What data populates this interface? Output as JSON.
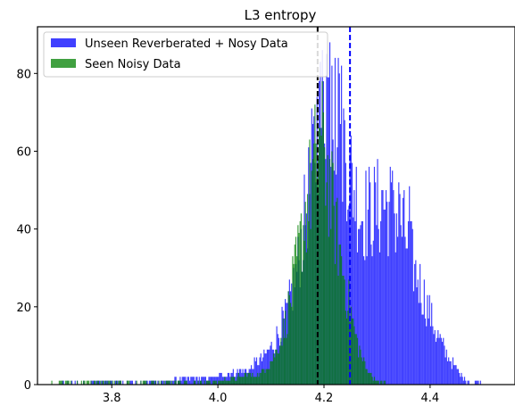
{
  "chart_data": {
    "type": "histogram",
    "title": "L3 entropy",
    "xlabel": "",
    "ylabel": "",
    "xlim": [
      3.66,
      4.56
    ],
    "ylim": [
      0,
      92
    ],
    "xticks": [
      3.8,
      4.0,
      4.2,
      4.4
    ],
    "xtick_labels": [
      "3.8",
      "4.0",
      "4.2",
      "4.4"
    ],
    "yticks": [
      0,
      20,
      40,
      60,
      80
    ],
    "ytick_labels": [
      "0",
      "20",
      "40",
      "60",
      "80"
    ],
    "grid": false,
    "legend_position": "upper-left",
    "bin_width": 0.002,
    "series": [
      {
        "name": "Unseen Reverberated + Nosy Data",
        "color": "#0000ff",
        "opacity": 0.75,
        "profile": [
          [
            3.7,
            0
          ],
          [
            3.9,
            1
          ],
          [
            4.0,
            2
          ],
          [
            4.06,
            4
          ],
          [
            4.1,
            9
          ],
          [
            4.13,
            18
          ],
          [
            4.15,
            30
          ],
          [
            4.17,
            48
          ],
          [
            4.19,
            68
          ],
          [
            4.21,
            76
          ],
          [
            4.23,
            68
          ],
          [
            4.25,
            54
          ],
          [
            4.27,
            44
          ],
          [
            4.29,
            44
          ],
          [
            4.31,
            46
          ],
          [
            4.33,
            45
          ],
          [
            4.35,
            40
          ],
          [
            4.37,
            30
          ],
          [
            4.39,
            22
          ],
          [
            4.41,
            14
          ],
          [
            4.43,
            8
          ],
          [
            4.45,
            4
          ],
          [
            4.47,
            1
          ],
          [
            4.5,
            0
          ]
        ],
        "peak_bins": [
          [
            4.21,
            88
          ],
          [
            4.205,
            85
          ],
          [
            4.22,
            84
          ],
          [
            4.215,
            82
          ],
          [
            4.228,
            80
          ],
          [
            4.19,
            78
          ],
          [
            4.34,
            52
          ],
          [
            4.33,
            50
          ],
          [
            4.36,
            51
          ],
          [
            4.31,
            50
          ]
        ]
      },
      {
        "name": "Seen Noisy Data",
        "color": "#008000",
        "opacity": 0.75,
        "profile": [
          [
            3.7,
            0
          ],
          [
            3.9,
            0.5
          ],
          [
            4.0,
            1
          ],
          [
            4.08,
            3
          ],
          [
            4.11,
            8
          ],
          [
            4.13,
            17
          ],
          [
            4.15,
            32
          ],
          [
            4.17,
            48
          ],
          [
            4.185,
            58
          ],
          [
            4.195,
            62
          ],
          [
            4.205,
            56
          ],
          [
            4.22,
            42
          ],
          [
            4.24,
            26
          ],
          [
            4.26,
            12
          ],
          [
            4.28,
            4
          ],
          [
            4.3,
            1
          ],
          [
            4.32,
            0
          ]
        ],
        "peak_bins": [
          [
            4.19,
            66
          ],
          [
            4.195,
            64
          ],
          [
            4.185,
            62
          ],
          [
            4.2,
            61
          ]
        ]
      }
    ],
    "vlines": [
      {
        "x": 4.188,
        "color": "#000000",
        "style": "dashed"
      },
      {
        "x": 4.249,
        "color": "#0000ff",
        "style": "dashed"
      }
    ]
  }
}
